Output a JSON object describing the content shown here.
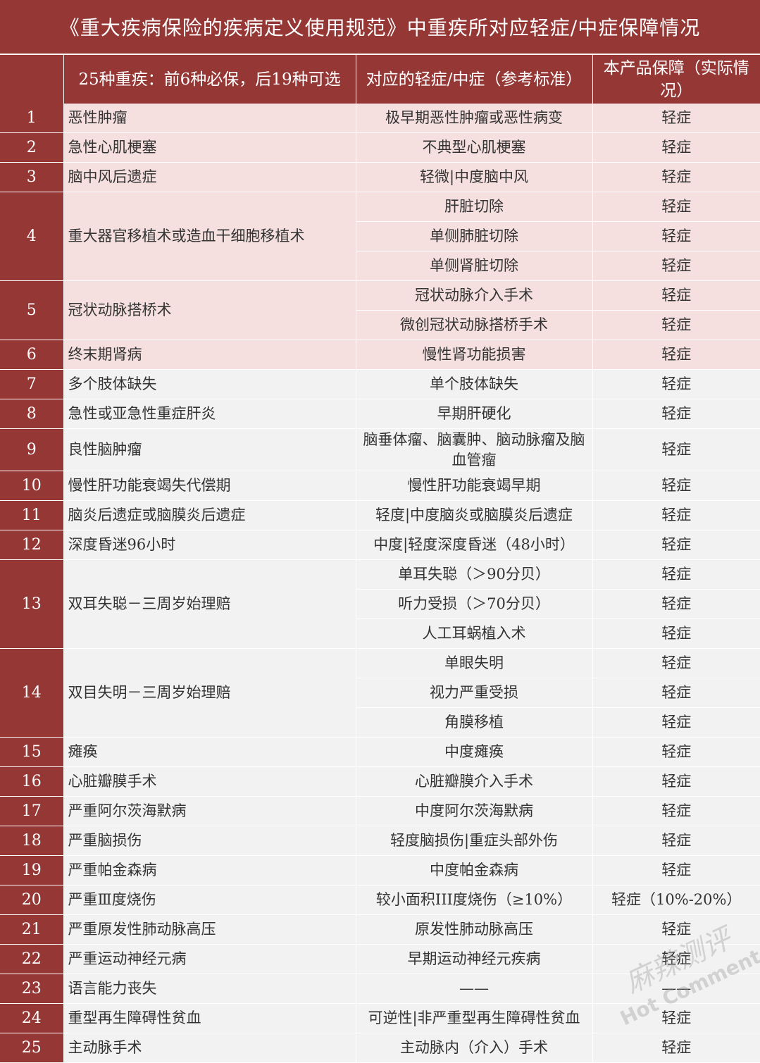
{
  "title": "《重大疾病保险的疾病定义使用规范》中重疾所对应轻症/中症保障情况",
  "headers": {
    "disease": "25种重疾：前6种必保，后19种可选",
    "mild": "对应的轻症/中症（参考标准）",
    "product": "本产品保障（实际情况）"
  },
  "colors": {
    "header_bg": "#953735",
    "must_row_bg": "#f5dfdf",
    "optional_row_bg": "#f2f2f2"
  },
  "rows": [
    {
      "num": "1",
      "disease": "恶性肿瘤",
      "items": [
        {
          "mild": "极早期恶性肿瘤或恶性病变",
          "product": "轻症"
        }
      ]
    },
    {
      "num": "2",
      "disease": "急性心肌梗塞",
      "items": [
        {
          "mild": "不典型心肌梗塞",
          "product": "轻症"
        }
      ]
    },
    {
      "num": "3",
      "disease": "脑中风后遗症",
      "items": [
        {
          "mild": "轻微|中度脑中风",
          "product": "轻症"
        }
      ]
    },
    {
      "num": "4",
      "disease": "重大器官移植术或造血干细胞移植术",
      "items": [
        {
          "mild": "肝脏切除",
          "product": "轻症"
        },
        {
          "mild": "单侧肺脏切除",
          "product": "轻症"
        },
        {
          "mild": "单侧肾脏切除",
          "product": "轻症"
        }
      ]
    },
    {
      "num": "5",
      "disease": "冠状动脉搭桥术",
      "items": [
        {
          "mild": "冠状动脉介入手术",
          "product": "轻症"
        },
        {
          "mild": "微创冠状动脉搭桥手术",
          "product": "轻症"
        }
      ]
    },
    {
      "num": "6",
      "disease": "终末期肾病",
      "items": [
        {
          "mild": "慢性肾功能损害",
          "product": "轻症"
        }
      ]
    },
    {
      "num": "7",
      "disease": "多个肢体缺失",
      "items": [
        {
          "mild": "单个肢体缺失",
          "product": "轻症"
        }
      ]
    },
    {
      "num": "8",
      "disease": "急性或亚急性重症肝炎",
      "items": [
        {
          "mild": "早期肝硬化",
          "product": "轻症"
        }
      ]
    },
    {
      "num": "9",
      "disease": "良性脑肿瘤",
      "items": [
        {
          "mild": "脑垂体瘤、脑囊肿、脑动脉瘤及脑血管瘤",
          "product": "轻症"
        }
      ]
    },
    {
      "num": "10",
      "disease": "慢性肝功能衰竭失代偿期",
      "items": [
        {
          "mild": "慢性肝功能衰竭早期",
          "product": "轻症"
        }
      ]
    },
    {
      "num": "11",
      "disease": "脑炎后遗症或脑膜炎后遗症",
      "items": [
        {
          "mild": "轻度|中度脑炎或脑膜炎后遗症",
          "product": "轻症"
        }
      ]
    },
    {
      "num": "12",
      "disease": "深度昏迷96小时",
      "items": [
        {
          "mild": "中度|轻度深度昏迷（48小时）",
          "product": "轻症"
        }
      ]
    },
    {
      "num": "13",
      "disease": "双耳失聪－三周岁始理赔",
      "items": [
        {
          "mild": "单耳失聪（＞90分贝）",
          "product": "轻症"
        },
        {
          "mild": "听力受损（＞70分贝）",
          "product": "轻症"
        },
        {
          "mild": "人工耳蜗植入术",
          "product": "轻症"
        }
      ]
    },
    {
      "num": "14",
      "disease": "双目失明－三周岁始理赔",
      "items": [
        {
          "mild": "单眼失明",
          "product": "轻症"
        },
        {
          "mild": "视力严重受损",
          "product": "轻症"
        },
        {
          "mild": "角膜移植",
          "product": "轻症"
        }
      ]
    },
    {
      "num": "15",
      "disease": "瘫痪",
      "items": [
        {
          "mild": "中度瘫痪",
          "product": "轻症"
        }
      ]
    },
    {
      "num": "16",
      "disease": "心脏瓣膜手术",
      "items": [
        {
          "mild": "心脏瓣膜介入手术",
          "product": "轻症"
        }
      ]
    },
    {
      "num": "17",
      "disease": "严重阿尔茨海默病",
      "items": [
        {
          "mild": "中度阿尔茨海默病",
          "product": "轻症"
        }
      ]
    },
    {
      "num": "18",
      "disease": "严重脑损伤",
      "items": [
        {
          "mild": "轻度脑损伤|重症头部外伤",
          "product": "轻症"
        }
      ]
    },
    {
      "num": "19",
      "disease": "严重帕金森病",
      "items": [
        {
          "mild": "中度帕金森病",
          "product": "轻症"
        }
      ]
    },
    {
      "num": "20",
      "disease": "严重Ⅲ度烧伤",
      "items": [
        {
          "mild": "较小面积III度烧伤（≥10%）",
          "product": "轻症（10%-20%）"
        }
      ]
    },
    {
      "num": "21",
      "disease": "严重原发性肺动脉高压",
      "items": [
        {
          "mild": "原发性肺动脉高压",
          "product": "轻症"
        }
      ]
    },
    {
      "num": "22",
      "disease": "严重运动神经元病",
      "items": [
        {
          "mild": "早期运动神经元疾病",
          "product": "轻症"
        }
      ]
    },
    {
      "num": "23",
      "disease": "语言能力丧失",
      "items": [
        {
          "mild": "——",
          "product": "——"
        }
      ]
    },
    {
      "num": "24",
      "disease": "重型再生障碍性贫血",
      "items": [
        {
          "mild": "可逆性|非严重型再生障碍性贫血",
          "product": "轻症"
        }
      ]
    },
    {
      "num": "25",
      "disease": "主动脉手术",
      "items": [
        {
          "mild": "主动脉内（介入）手术",
          "product": "轻症"
        }
      ]
    }
  ],
  "watermark": {
    "line1": "麻辣测评",
    "line2": "Hot Comment"
  }
}
